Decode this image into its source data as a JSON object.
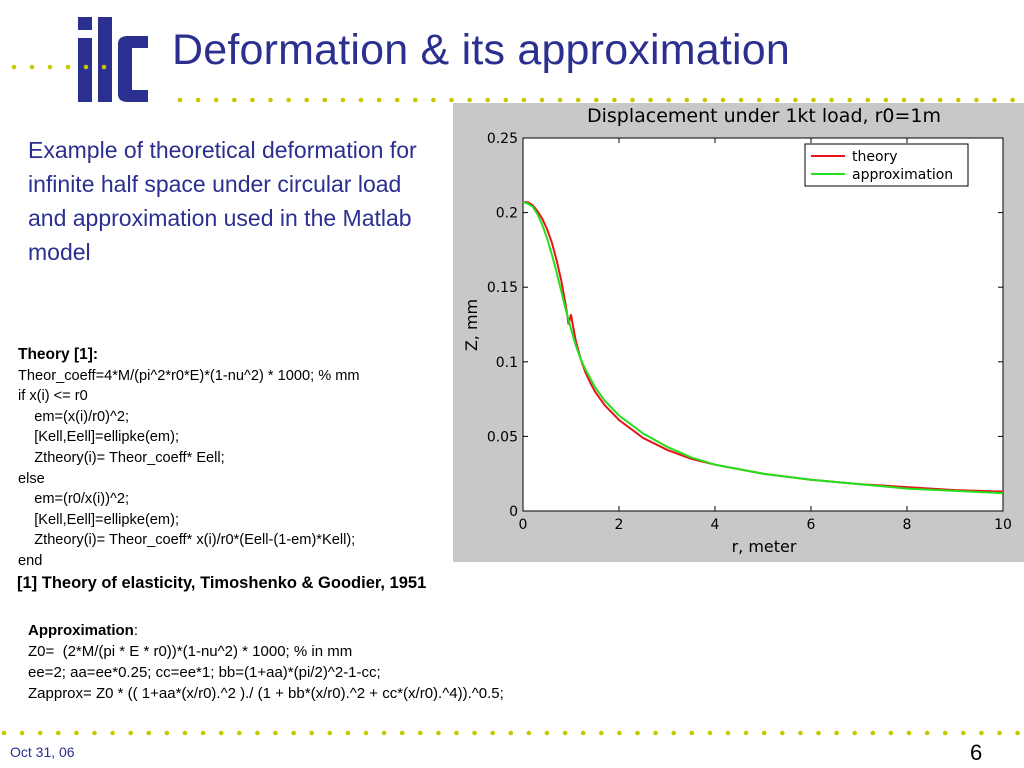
{
  "slide": {
    "title": "Deformation & its approximation",
    "logo_text": "ilc",
    "intro": "Example of theoretical deformation for infinite half space under circular load and approximation used in the Matlab model",
    "theory_heading": "Theory [1]:",
    "theory_lines": [
      "Theor_coeff=4*M/(pi^2*r0*E)*(1-nu^2) * 1000; % mm",
      "if x(i) <= r0",
      "    em=(x(i)/r0)^2;",
      "    [Kell,Eell]=ellipke(em);",
      "    Ztheory(i)= Theor_coeff* Eell;",
      "else",
      "    em=(r0/x(i))^2;",
      "    [Kell,Eell]=ellipke(em);",
      "    Ztheory(i)= Theor_coeff* x(i)/r0*(Eell-(1-em)*Kell);",
      "end"
    ],
    "reference": "[1] Theory of elasticity, Timoshenko & Goodier, 1951",
    "approx_heading": "Approximation",
    "approx_colon": ":",
    "approx_lines": [
      "Z0=  (2*M/(pi * E * r0))*(1-nu^2) * 1000; % in mm",
      "ee=2; aa=ee*0.25; cc=ee*1; bb=(1+aa)*(pi/2)^2-1-cc;",
      "Zapprox= Z0 * (( 1+aa*(x/r0).^2 )./ (1 + bb*(x/r0).^2 + cc*(x/r0).^4)).^0.5;"
    ],
    "footer_date": "Oct 31, 06",
    "page_number": "6",
    "colors": {
      "title_blue": "#2b2f8f",
      "dot_green": "#c8c800",
      "plot_bg": "#c8c8c8"
    }
  },
  "chart_data": {
    "type": "line",
    "title": "Displacement under 1kt load, r0=1m",
    "xlabel": "r, meter",
    "ylabel": "Z, mm",
    "xlim": [
      0,
      10
    ],
    "ylim": [
      0,
      0.25
    ],
    "xticks": [
      0,
      2,
      4,
      6,
      8,
      10
    ],
    "yticks": [
      0,
      0.05,
      0.1,
      0.15,
      0.2,
      0.25
    ],
    "ytick_labels": [
      "0",
      "0.05",
      "0.1",
      "0.15",
      "0.2",
      "0.25"
    ],
    "grid": false,
    "legend": "top-right",
    "series": [
      {
        "name": "theory",
        "color": "#e8121c",
        "x": [
          0,
          0.1,
          0.2,
          0.3,
          0.4,
          0.5,
          0.6,
          0.7,
          0.8,
          0.9,
          0.95,
          1.0,
          1.05,
          1.1,
          1.2,
          1.3,
          1.4,
          1.5,
          1.7,
          2.0,
          2.5,
          3.0,
          3.5,
          4.0,
          5.0,
          6.0,
          7.0,
          8.0,
          9.0,
          10.0
        ],
        "y": [
          0.207,
          0.207,
          0.205,
          0.201,
          0.196,
          0.189,
          0.18,
          0.168,
          0.154,
          0.136,
          0.125,
          0.1318,
          0.1225,
          0.114,
          0.102,
          0.093,
          0.086,
          0.08,
          0.071,
          0.061,
          0.049,
          0.041,
          0.035,
          0.031,
          0.025,
          0.021,
          0.018,
          0.016,
          0.014,
          0.013
        ]
      },
      {
        "name": "approximation",
        "color": "#22e11a",
        "x": [
          0,
          0.1,
          0.2,
          0.3,
          0.4,
          0.5,
          0.6,
          0.7,
          0.8,
          0.9,
          1.0,
          1.1,
          1.2,
          1.3,
          1.4,
          1.5,
          1.7,
          2.0,
          2.5,
          3.0,
          3.5,
          4.0,
          5.0,
          6.0,
          7.0,
          8.0,
          9.0,
          10.0
        ],
        "y": [
          0.207,
          0.206,
          0.204,
          0.199,
          0.192,
          0.183,
          0.172,
          0.16,
          0.147,
          0.134,
          0.122,
          0.111,
          0.102,
          0.095,
          0.089,
          0.083,
          0.074,
          0.064,
          0.052,
          0.043,
          0.036,
          0.031,
          0.025,
          0.021,
          0.018,
          0.015,
          0.0135,
          0.012
        ]
      }
    ]
  }
}
